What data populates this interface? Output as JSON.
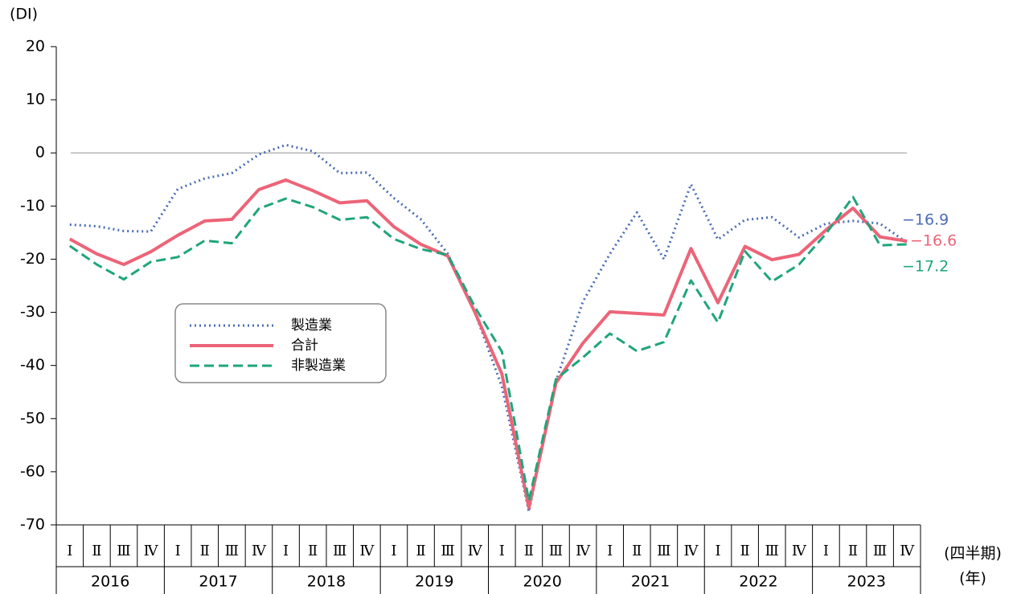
{
  "chart_data": {
    "type": "line",
    "y_label": "(DI)",
    "x_label": "(四半期)",
    "year_label": "(年)",
    "categories": [
      "Ⅰ",
      "Ⅱ",
      "Ⅲ",
      "Ⅳ",
      "Ⅰ",
      "Ⅱ",
      "Ⅲ",
      "Ⅳ",
      "Ⅰ",
      "Ⅱ",
      "Ⅲ",
      "Ⅳ",
      "Ⅰ",
      "Ⅱ",
      "Ⅲ",
      "Ⅳ",
      "Ⅰ",
      "Ⅱ",
      "Ⅲ",
      "Ⅳ",
      "Ⅰ",
      "Ⅱ",
      "Ⅲ",
      "Ⅳ",
      "Ⅰ",
      "Ⅱ",
      "Ⅲ",
      "Ⅳ",
      "Ⅰ",
      "Ⅱ",
      "Ⅲ",
      "Ⅳ"
    ],
    "years": [
      "2016",
      "2017",
      "2018",
      "2019",
      "2020",
      "2021",
      "2022",
      "2023"
    ],
    "ylim": [
      -70,
      20
    ],
    "yticks": [
      -70,
      -60,
      -50,
      -40,
      -30,
      -20,
      -10,
      0,
      10,
      20
    ],
    "reference_line": 0,
    "series": [
      {
        "name": "製造業",
        "color": "#4a6db5",
        "dash": "dotted",
        "values": [
          -13.5,
          -13.8,
          -14.7,
          -14.8,
          -6.8,
          -4.8,
          -3.8,
          -0.3,
          1.5,
          0.3,
          -3.8,
          -3.7,
          -8.5,
          -12.5,
          -19.0,
          -30,
          -44,
          -67.5,
          -43,
          -28,
          -19,
          -11.2,
          -20,
          -5.9,
          -16.3,
          -12.6,
          -12.1,
          -15.9,
          -13.3,
          -12.8,
          -13.3,
          -16.9
        ],
        "value_labels": [
          null,
          null,
          null,
          null,
          null,
          null,
          null,
          null,
          null,
          null,
          null,
          null,
          null,
          null,
          null,
          null,
          null,
          null,
          null,
          null,
          null,
          null,
          null,
          null,
          null,
          null,
          null,
          null,
          null,
          null,
          null,
          "−16.9"
        ]
      },
      {
        "name": "合計",
        "color": "#ec6478",
        "dash": "solid",
        "values": [
          -16.2,
          -19,
          -21,
          -18.6,
          -15.5,
          -12.8,
          -12.5,
          -6.9,
          -5.1,
          -7.1,
          -9.4,
          -9.0,
          -13.9,
          -17.2,
          -19.4,
          -30,
          -41.6,
          -66.8,
          -43.3,
          -35.8,
          -29.9,
          -30.2,
          -30.5,
          -18,
          -28.2,
          -17.6,
          -20.1,
          -19.1,
          -14.5,
          -10.4,
          -15.8,
          -16.6
        ],
        "value_labels": [
          null,
          null,
          null,
          null,
          null,
          null,
          null,
          null,
          null,
          null,
          null,
          null,
          null,
          null,
          null,
          null,
          null,
          null,
          null,
          null,
          null,
          null,
          null,
          null,
          null,
          null,
          null,
          null,
          null,
          null,
          null,
          "−16.6"
        ]
      },
      {
        "name": "非製造業",
        "color": "#1fa57a",
        "dash": "dashed",
        "values": [
          -17.5,
          -21,
          -23.8,
          -20.5,
          -19.6,
          -16.5,
          -17.0,
          -10.5,
          -8.6,
          -10.2,
          -12.6,
          -12.1,
          -16.2,
          -18.1,
          -19.2,
          -29,
          -37.4,
          -65.5,
          -42.6,
          -38.5,
          -34,
          -37.3,
          -35.6,
          -24,
          -31.9,
          -18.5,
          -24.2,
          -21,
          -15.2,
          -8.3,
          -17.4,
          -17.2
        ],
        "value_labels": [
          null,
          null,
          null,
          null,
          null,
          null,
          null,
          null,
          null,
          null,
          null,
          null,
          null,
          null,
          null,
          null,
          null,
          null,
          null,
          null,
          null,
          null,
          null,
          null,
          null,
          null,
          null,
          null,
          null,
          null,
          null,
          "−17.2"
        ]
      }
    ]
  }
}
